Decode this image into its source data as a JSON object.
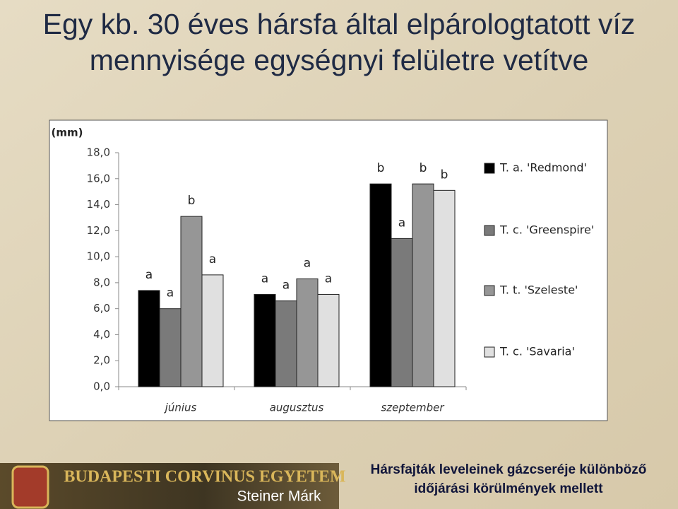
{
  "slide": {
    "title_lines": [
      "Egy kb. 30 éves hársfa által elpárologtatott víz",
      "mennyisége egységnyi felületre vetítve"
    ],
    "footer": {
      "university": "BUDAPESTI CORVINUS EGYETEM",
      "author": "Steiner Márk",
      "subtitle_lines": [
        "Hársfajták leveleinek gázcseréje különböző",
        "időjárási körülmények mellett"
      ]
    }
  },
  "chart_data": {
    "type": "bar",
    "y_label": "(mm)",
    "categories": [
      "június",
      "augusztus",
      "szeptember"
    ],
    "series": [
      {
        "name": "T. a. 'Redmond'",
        "color": "#000000",
        "values": [
          7.4,
          7.1,
          15.6
        ],
        "letters": [
          "a",
          "a",
          "b"
        ]
      },
      {
        "name": "T. c. 'Greenspire'",
        "color": "#7a7a7a",
        "values": [
          6.0,
          6.6,
          11.4
        ],
        "letters": [
          "a",
          "a",
          "a"
        ]
      },
      {
        "name": "T. t. 'Szeleste'",
        "color": "#969696",
        "values": [
          13.1,
          8.3,
          15.6
        ],
        "letters": [
          "b",
          "a",
          "b"
        ]
      },
      {
        "name": "T. c. 'Savaria'",
        "color": "#e0e0e0",
        "values": [
          8.6,
          7.1,
          15.1
        ],
        "letters": [
          "a",
          "a",
          "b"
        ]
      }
    ],
    "ylim": [
      0,
      18
    ],
    "yticks": [
      {
        "value": 0,
        "label": "0,0"
      },
      {
        "value": 2,
        "label": "2,0"
      },
      {
        "value": 4,
        "label": "4,0"
      },
      {
        "value": 6,
        "label": "6,0"
      },
      {
        "value": 8,
        "label": "8,0"
      },
      {
        "value": 10,
        "label": "10,0"
      },
      {
        "value": 12,
        "label": "12,0"
      },
      {
        "value": 14,
        "label": "14,0"
      },
      {
        "value": 16,
        "label": "16,0"
      },
      {
        "value": 18,
        "label": "18,0"
      }
    ],
    "legend": "right"
  }
}
